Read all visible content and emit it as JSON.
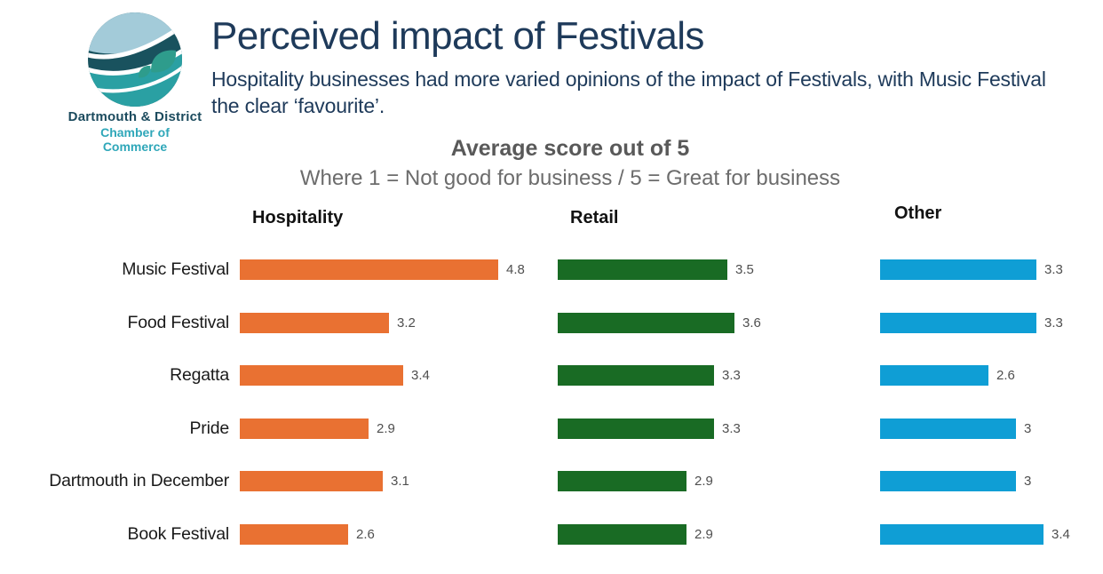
{
  "logo": {
    "org_line1": "Dartmouth & District",
    "org_line2": "Chamber of Commerce"
  },
  "header": {
    "title": "Perceived impact of Festivals",
    "subtitle": "Hospitality businesses had more varied opinions of the impact of Festivals, with Music Festival the clear ‘favourite’."
  },
  "chart_data": {
    "type": "bar",
    "orientation": "horizontal",
    "title": "Average score out of 5",
    "subtitle": "Where 1 = Not good for business / 5 = Great for business",
    "categories": [
      "Music Festival",
      "Food Festival",
      "Regatta",
      "Pride",
      "Dartmouth in December",
      "Book Festival"
    ],
    "series": [
      {
        "name": "Hospitality",
        "color": "#E97132",
        "values": [
          4.8,
          3.2,
          3.4,
          2.9,
          3.1,
          2.6
        ]
      },
      {
        "name": "Retail",
        "color": "#196B24",
        "values": [
          3.5,
          3.6,
          3.3,
          3.3,
          2.9,
          2.9
        ]
      },
      {
        "name": "Other",
        "color": "#0F9ED5",
        "values": [
          3.3,
          3.3,
          2.6,
          3,
          3,
          3.4
        ]
      }
    ],
    "xlim": [
      1,
      5
    ],
    "data_labels": true,
    "grid": false,
    "legend": "column-headers",
    "colors": {
      "hospitality": "#E97132",
      "retail": "#196B24",
      "other": "#0F9ED5"
    }
  }
}
